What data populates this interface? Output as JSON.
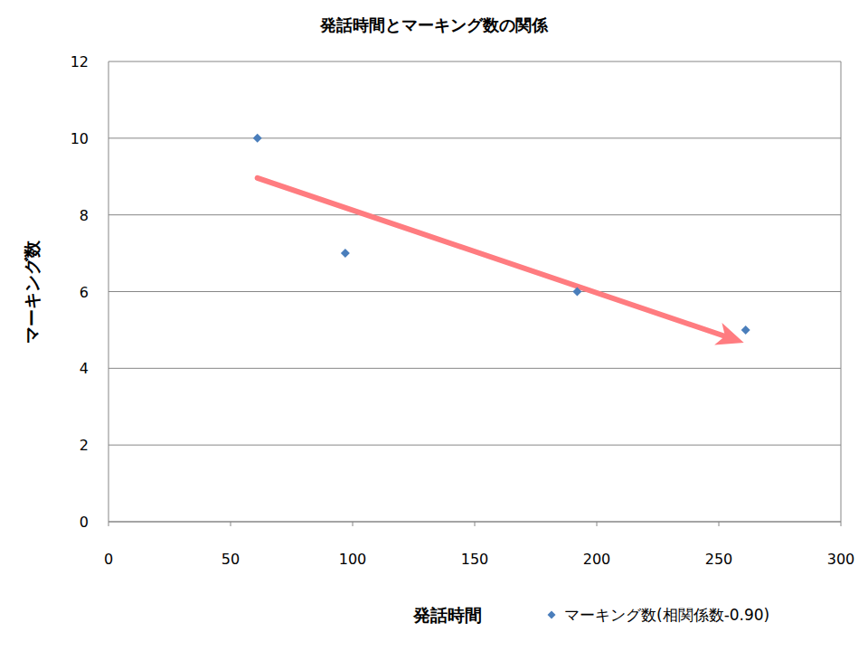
{
  "chart_data": {
    "type": "scatter",
    "title": "発話時間とマーキング数の関係",
    "x_label": "発話時間",
    "y_label": "マーキング数",
    "x": [
      61,
      97,
      192,
      261
    ],
    "series": [
      {
        "name": "マーキング数(相関係数-0.90)",
        "color": "#4a7ebb",
        "marker": "diamond",
        "values": [
          10,
          7,
          6,
          5
        ]
      }
    ],
    "xlim": [
      0,
      300
    ],
    "xticks": [
      0,
      50,
      100,
      150,
      200,
      250,
      300
    ],
    "ylim": [
      0,
      12
    ],
    "yticks": [
      0,
      2,
      4,
      6,
      8,
      10,
      12
    ],
    "grid": true,
    "legend": "bottom"
  }
}
